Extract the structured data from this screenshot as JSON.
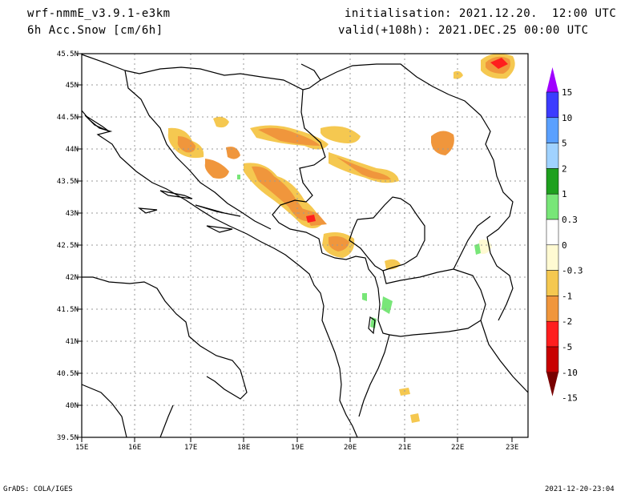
{
  "header": {
    "model": "wrf-nmmE_v3.9.1-e3km",
    "field": "6h Acc.Snow [cm/6h]",
    "init": "initialisation: 2021.12.20.  12:00 UTC",
    "valid": "valid(+108h): 2021.DEC.25 00:00 UTC"
  },
  "footer": {
    "credit": "GrADS: COLA/IGES",
    "timestamp": "2021-12-20-23:04"
  },
  "axes": {
    "lon_labels": [
      "15E",
      "16E",
      "17E",
      "18E",
      "19E",
      "20E",
      "21E",
      "22E",
      "23E"
    ],
    "lat_labels": [
      "45.5N",
      "45N",
      "44.5N",
      "44N",
      "43.5N",
      "43N",
      "42.5N",
      "42N",
      "41.5N",
      "41N",
      "40.5N",
      "40N",
      "39.5N"
    ]
  },
  "colorbar": {
    "labels": [
      "15",
      "10",
      "5",
      "2",
      "1",
      "0.3",
      "0",
      "-0.3",
      "-1",
      "-2",
      "-5",
      "-10",
      "-15"
    ],
    "colors": [
      "#a000ff",
      "#3c3cff",
      "#5aa0ff",
      "#a0d2ff",
      "#1ea01e",
      "#78e678",
      "#ffffff",
      "#fffad2",
      "#f5c850",
      "#f0963c",
      "#ff1e1e",
      "#c80000",
      "#780000"
    ]
  }
}
